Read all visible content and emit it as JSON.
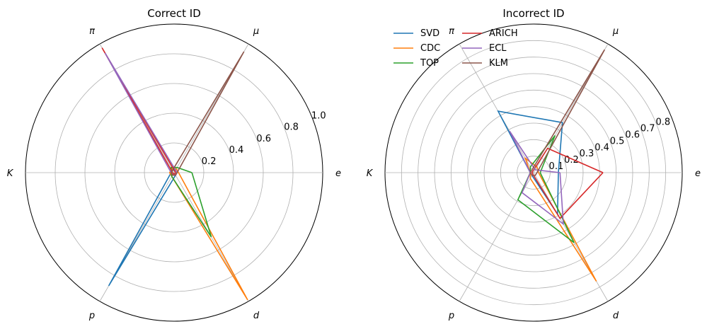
{
  "chart_data": [
    {
      "type": "radar",
      "title": "Correct ID",
      "axes": [
        "e",
        "μ",
        "π",
        "K",
        "p",
        "d"
      ],
      "radial_ticks": [
        "0.2",
        "0.4",
        "0.6",
        "0.8",
        "1.0"
      ],
      "rlim": [
        0,
        1.0
      ],
      "grid": true,
      "legend": null,
      "series": [
        {
          "name": "SVD",
          "values": [
            0.02,
            0.02,
            0.02,
            0.02,
            0.88,
            0.02
          ]
        },
        {
          "name": "CDC",
          "values": [
            0.03,
            0.03,
            0.03,
            0.03,
            0.03,
            0.99
          ]
        },
        {
          "name": "TOP",
          "values": [
            0.12,
            0.04,
            0.04,
            0.02,
            0.03,
            0.5
          ]
        },
        {
          "name": "ARICH",
          "values": [
            0.01,
            0.01,
            0.97,
            0.01,
            0.01,
            0.01
          ]
        },
        {
          "name": "ECL",
          "values": [
            0.02,
            0.02,
            0.93,
            0.02,
            0.02,
            0.02
          ]
        },
        {
          "name": "KLM",
          "values": [
            0.02,
            0.94,
            0.02,
            0.02,
            0.02,
            0.02
          ]
        }
      ]
    },
    {
      "type": "radar",
      "title": "Incorrect ID",
      "axes": [
        "e",
        "μ",
        "π",
        "K",
        "p",
        "d"
      ],
      "radial_ticks": [
        "0.1",
        "0.2",
        "0.3",
        "0.4",
        "0.5",
        "0.6",
        "0.7",
        "0.8"
      ],
      "rlim": [
        0,
        0.9
      ],
      "grid": true,
      "legend": "upper-left",
      "series": [
        {
          "name": "SVD",
          "values": [
            0.15,
            0.35,
            0.43,
            0.02,
            0.02,
            0.29
          ]
        },
        {
          "name": "CDC",
          "values": [
            0.03,
            0.04,
            0.1,
            0.02,
            0.04,
            0.76
          ]
        },
        {
          "name": "TOP",
          "values": [
            0.04,
            0.26,
            0.04,
            0.02,
            0.19,
            0.49
          ]
        },
        {
          "name": "ARICH",
          "values": [
            0.42,
            0.17,
            0.01,
            0.01,
            0.01,
            0.32
          ]
        },
        {
          "name": "ECL",
          "values": [
            0.16,
            0.02,
            0.29,
            0.02,
            0.14,
            0.36
          ]
        },
        {
          "name": "KLM",
          "values": [
            0.02,
            0.86,
            0.02,
            0.02,
            0.02,
            0.02
          ]
        }
      ]
    }
  ],
  "series_colors": {
    "SVD": "#1f77b4",
    "CDC": "#ff7f0e",
    "TOP": "#2ca02c",
    "ARICH": "#d62728",
    "ECL": "#9467bd",
    "KLM": "#8c564b"
  }
}
